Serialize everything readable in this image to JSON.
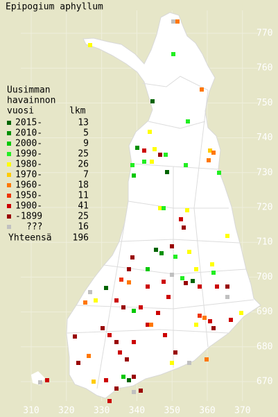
{
  "title": "Epipogium aphyllum",
  "legend": {
    "header": [
      "Uusimman",
      "havainnon",
      "vuosi"
    ],
    "count_header": "lkm",
    "rows": [
      {
        "label": "2015-",
        "count": 13,
        "color": "#006400"
      },
      {
        "label": "2010-",
        "count": 5,
        "color": "#009000"
      },
      {
        "label": "2000-",
        "count": 9,
        "color": "#00c800"
      },
      {
        "label": "1990-",
        "count": 25,
        "color": "#22ee22"
      },
      {
        "label": "1980-",
        "count": 26,
        "color": "#ffff00"
      },
      {
        "label": "1970-",
        "count": 7,
        "color": "#ffcc00"
      },
      {
        "label": "1960-",
        "count": 18,
        "color": "#ff7700"
      },
      {
        "label": "1950-",
        "count": 11,
        "color": "#ee3300"
      },
      {
        "label": "1900-",
        "count": 41,
        "color": "#cc0000"
      },
      {
        "label": "-1899",
        "count": 25,
        "color": "#990000"
      },
      {
        "label": "???",
        "count": 16,
        "color": "#c0c0c0"
      }
    ],
    "total_label": "Yhteensä",
    "total": 196
  },
  "x_labels": [
    "310",
    "320",
    "330",
    "340",
    "350",
    "360",
    "370"
  ],
  "y_labels": [
    "770",
    "760",
    "750",
    "740",
    "730",
    "720",
    "710",
    "700",
    "690",
    "680",
    "670"
  ]
}
